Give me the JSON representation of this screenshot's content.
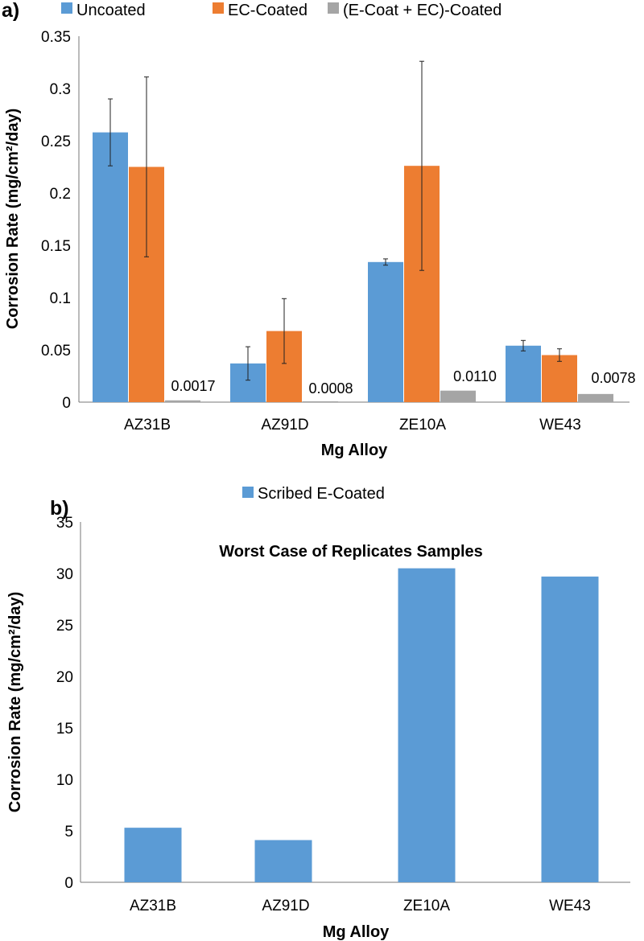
{
  "chart_data": [
    {
      "type": "bar",
      "panel_label": "a)",
      "title": "",
      "xlabel": "Mg Alloy",
      "ylabel": "Corrosion Rate (mg/cm²/day)",
      "ylim": [
        0,
        0.35
      ],
      "yticks": [
        0,
        0.05,
        0.1,
        0.15,
        0.2,
        0.25,
        0.3,
        0.35
      ],
      "ytick_labels": [
        "0",
        "0.05",
        "0.1",
        "0.15",
        "0.2",
        "0.25",
        "0.3",
        "0.35"
      ],
      "categories": [
        "AZ31B",
        "AZ91D",
        "ZE10A",
        "WE43"
      ],
      "legend_position": "top",
      "series": [
        {
          "name": "Uncoated",
          "color": "#5b9bd5",
          "values": [
            0.258,
            0.037,
            0.134,
            0.054
          ],
          "errors": [
            0.032,
            0.016,
            0.003,
            0.005
          ]
        },
        {
          "name": "EC-Coated",
          "color": "#ed7d31",
          "values": [
            0.225,
            0.068,
            0.226,
            0.045
          ],
          "errors": [
            0.086,
            0.031,
            0.1,
            0.006
          ]
        },
        {
          "name": "(E-Coat + EC)-Coated",
          "color": "#a5a5a5",
          "values": [
            0.0017,
            0.0008,
            0.011,
            0.0078
          ],
          "errors": [
            0,
            0,
            0,
            0
          ]
        }
      ],
      "data_labels": [
        "0.0017",
        "0.0008",
        "0.0110",
        "0.0078"
      ]
    },
    {
      "type": "bar",
      "panel_label": "b)",
      "title": "Worst Case of Replicates Samples",
      "xlabel": "Mg Alloy",
      "ylabel": "Corrosion Rate (mg/cm²/day)",
      "ylim": [
        0,
        35
      ],
      "yticks": [
        0,
        5,
        10,
        15,
        20,
        25,
        30,
        35
      ],
      "ytick_labels": [
        "0",
        "5",
        "10",
        "15",
        "20",
        "25",
        "30",
        "35"
      ],
      "categories": [
        "AZ31B",
        "AZ91D",
        "ZE10A",
        "WE43"
      ],
      "legend_position": "top",
      "series": [
        {
          "name": "Scribed E-Coated",
          "color": "#5b9bd5",
          "values": [
            5.3,
            4.1,
            30.5,
            29.7
          ]
        }
      ]
    }
  ]
}
